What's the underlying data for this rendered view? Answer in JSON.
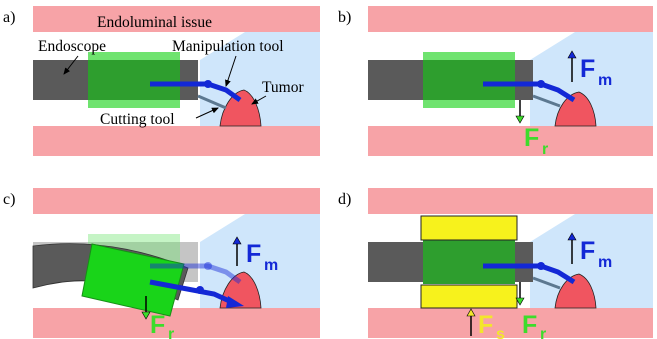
{
  "panels": [
    {
      "letter": "a)"
    },
    {
      "letter": "b)"
    },
    {
      "letter": "c)"
    },
    {
      "letter": "d)"
    }
  ],
  "labels": {
    "tissue": "Endoluminal issue",
    "endoscope": "Endoscope",
    "manipulation_tool": "Manipulation tool",
    "tumor": "Tumor",
    "cutting_tool": "Cutting tool"
  },
  "forces": {
    "F": "F",
    "m": "m",
    "r": "r",
    "s": "s"
  },
  "colors": {
    "tissue": "#f7a3a7",
    "lumen": "#cfe6fb",
    "endoscope": "#5a5a5a",
    "sheath_light": "#6fe36f",
    "sheath_dark": "#2e9e2e",
    "manip_tool": "#1328d6",
    "tumor": "#f05560",
    "force_m": "#1328d6",
    "force_r": "#3ddc2c",
    "force_s": "#f3e62c",
    "yellow_block": "#f7f21c"
  }
}
